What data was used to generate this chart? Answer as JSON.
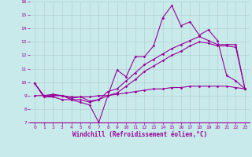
{
  "xlabel": "Windchill (Refroidissement éolien,°C)",
  "background_color": "#c8eaea",
  "grid_color": "#b0cccc",
  "line_color": "#990099",
  "x_values": [
    0,
    1,
    2,
    3,
    4,
    5,
    6,
    7,
    8,
    9,
    10,
    11,
    12,
    13,
    14,
    15,
    16,
    17,
    18,
    19,
    20,
    21,
    22,
    23
  ],
  "series1": [
    9.9,
    8.9,
    8.9,
    8.7,
    8.7,
    8.5,
    8.3,
    7.0,
    9.0,
    10.9,
    10.4,
    11.9,
    11.9,
    12.7,
    14.8,
    15.7,
    14.2,
    14.5,
    13.5,
    13.9,
    13.1,
    10.5,
    10.1,
    9.5
  ],
  "series2": [
    9.9,
    8.9,
    9.0,
    9.0,
    8.7,
    8.7,
    8.5,
    8.7,
    9.3,
    9.5,
    10.1,
    10.7,
    11.3,
    11.7,
    12.1,
    12.5,
    12.8,
    13.1,
    13.4,
    13.1,
    12.8,
    12.8,
    12.8,
    9.5
  ],
  "series3": [
    9.9,
    9.0,
    9.1,
    9.0,
    8.8,
    8.9,
    8.6,
    8.7,
    9.0,
    9.2,
    9.7,
    10.2,
    10.8,
    11.2,
    11.6,
    12.0,
    12.3,
    12.7,
    13.0,
    12.9,
    12.7,
    12.7,
    12.6,
    9.5
  ],
  "series4": [
    9.0,
    9.0,
    9.0,
    9.0,
    8.9,
    8.9,
    8.9,
    9.0,
    9.0,
    9.1,
    9.2,
    9.3,
    9.4,
    9.5,
    9.5,
    9.6,
    9.6,
    9.7,
    9.7,
    9.7,
    9.7,
    9.7,
    9.6,
    9.5
  ],
  "ylim": [
    7,
    16
  ],
  "xlim": [
    -0.5,
    23.5
  ],
  "yticks": [
    7,
    8,
    9,
    10,
    11,
    12,
    13,
    14,
    15,
    16
  ],
  "xticks": [
    0,
    1,
    2,
    3,
    4,
    5,
    6,
    7,
    8,
    9,
    10,
    11,
    12,
    13,
    14,
    15,
    16,
    17,
    18,
    19,
    20,
    21,
    22,
    23
  ],
  "tick_fontsize": 4.5,
  "xlabel_fontsize": 5.5,
  "marker_size": 1.8,
  "line_width": 0.8
}
